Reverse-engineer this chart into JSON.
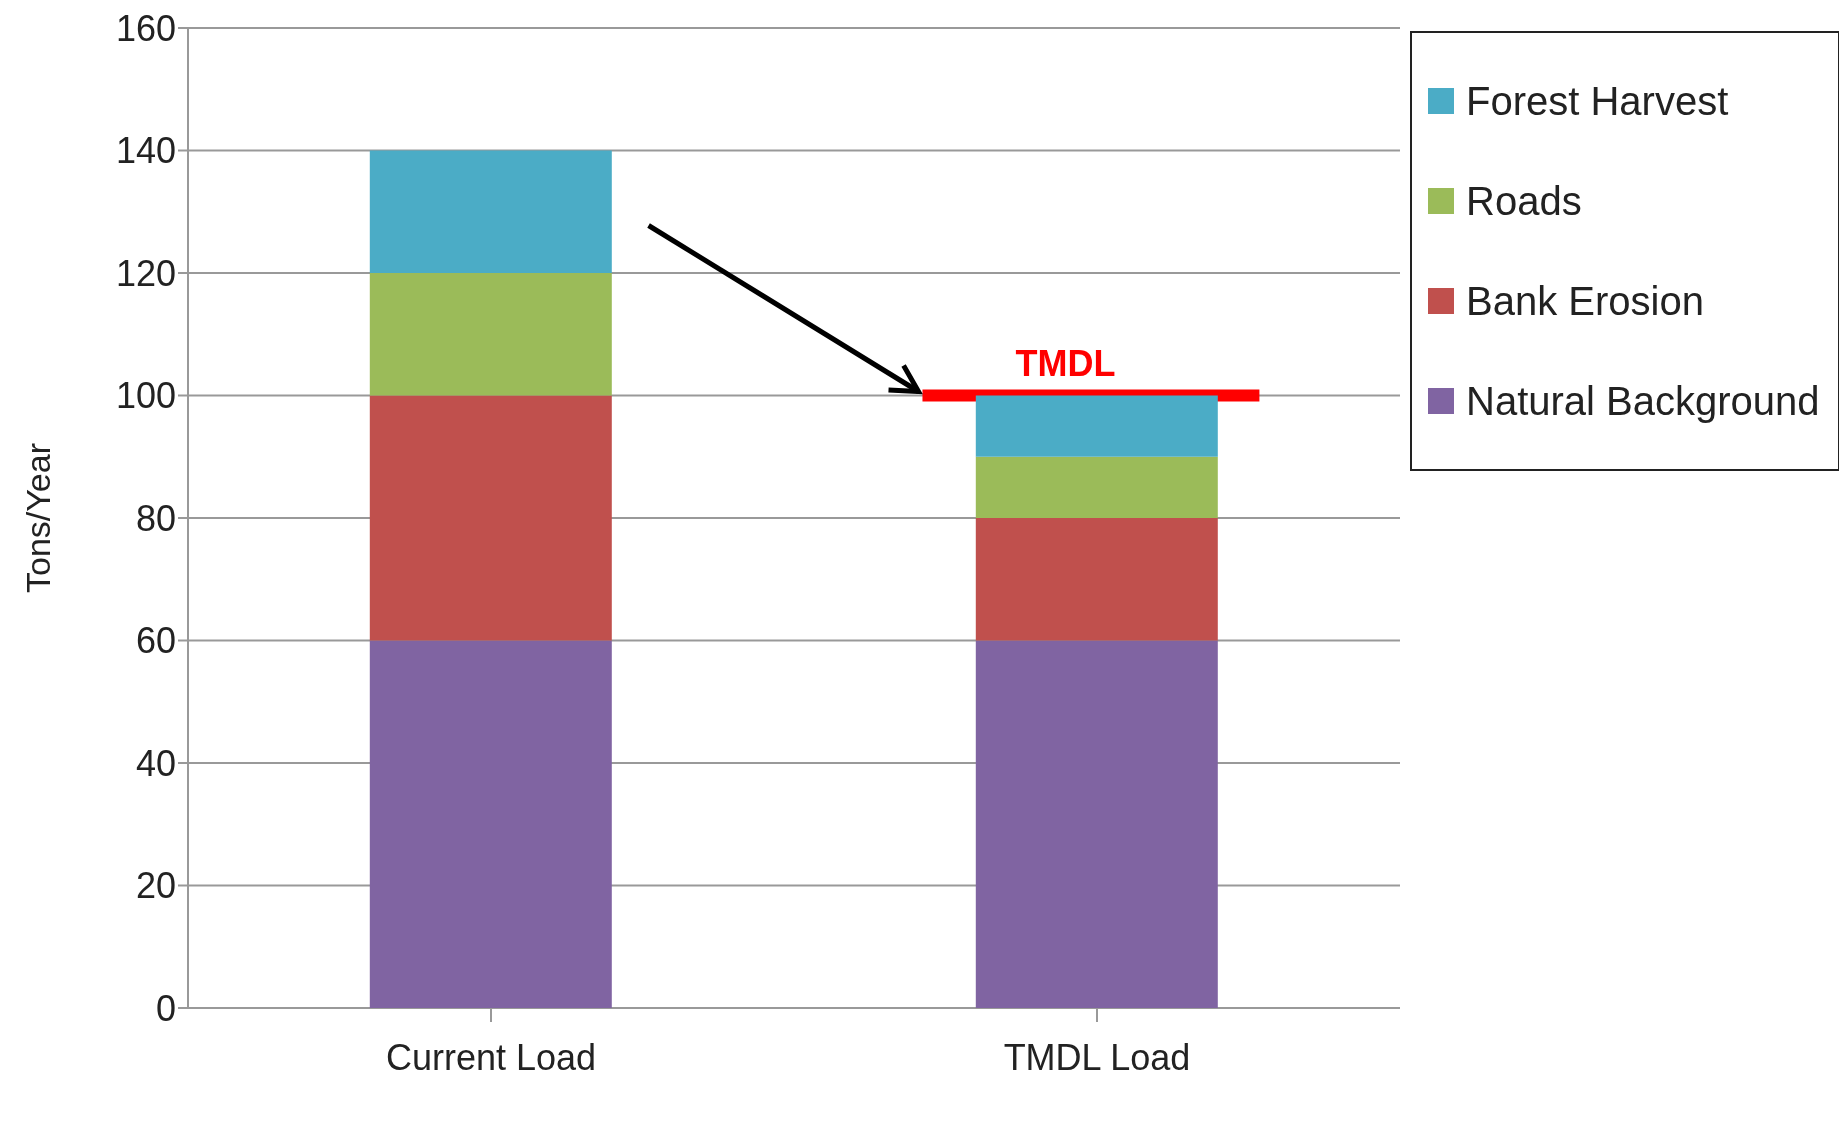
{
  "chart_data": {
    "type": "bar",
    "stacked": true,
    "categories": [
      "Current Load",
      "TMDL Load"
    ],
    "series": [
      {
        "name": "Natural Background",
        "color": "#8064a2",
        "values": [
          60,
          60
        ]
      },
      {
        "name": "Bank Erosion",
        "color": "#c0504d",
        "values": [
          40,
          20
        ]
      },
      {
        "name": "Roads",
        "color": "#9bbb59",
        "values": [
          20,
          10
        ]
      },
      {
        "name": "Forest Harvest",
        "color": "#4bacc6",
        "values": [
          20,
          10
        ]
      }
    ],
    "ylabel": "Tons/Year",
    "ylim": [
      0,
      160
    ],
    "yticks": [
      0,
      20,
      40,
      60,
      80,
      100,
      120,
      140,
      160
    ],
    "grid": "y",
    "legend": "right",
    "ref_lines": [
      {
        "axis": "y",
        "value": 100,
        "label": "TMDL",
        "color": "#ff0000"
      }
    ]
  }
}
